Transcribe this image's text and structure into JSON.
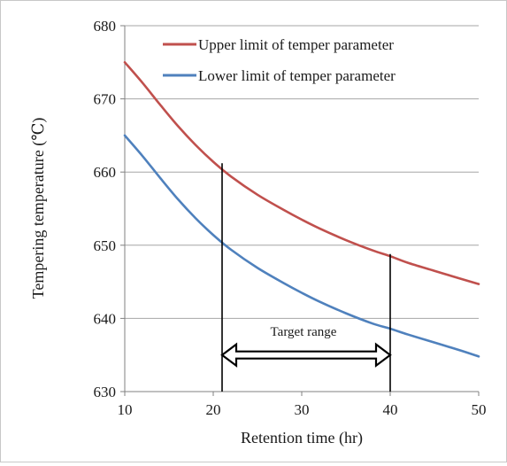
{
  "chart_data": {
    "type": "line",
    "title": "",
    "xlabel": "Retention time (hr)",
    "ylabel": "Tempering temperature (℃)",
    "xlim": [
      10,
      50
    ],
    "ylim": [
      630,
      680
    ],
    "x_ticks": [
      10,
      20,
      30,
      40,
      50
    ],
    "y_ticks": [
      630,
      640,
      650,
      660,
      670,
      680
    ],
    "grid": "horizontal",
    "legend_position": "top-right",
    "series": [
      {
        "name": "Upper limit of temper parameter",
        "color": "#c0504d",
        "x": [
          10,
          12,
          14,
          16,
          18,
          20,
          22,
          25,
          28,
          30,
          32,
          35,
          38,
          40,
          42,
          45,
          48,
          50
        ],
        "y": [
          675,
          672.2,
          669.2,
          666.3,
          663.7,
          661.4,
          659.4,
          656.9,
          654.8,
          653.5,
          652.3,
          650.7,
          649.3,
          648.5,
          647.6,
          646.5,
          645.4,
          644.7
        ]
      },
      {
        "name": "Lower limit of temper parameter",
        "color": "#4f81bd",
        "x": [
          10,
          12,
          14,
          16,
          18,
          20,
          22,
          25,
          28,
          30,
          32,
          35,
          38,
          40,
          42,
          45,
          48,
          50
        ],
        "y": [
          665,
          662.2,
          659.2,
          656.3,
          653.7,
          651.4,
          649.4,
          646.9,
          644.8,
          643.5,
          642.3,
          640.7,
          639.3,
          638.6,
          637.8,
          636.7,
          635.6,
          634.8
        ]
      }
    ],
    "annotations": {
      "target_range": {
        "label": "Target range",
        "x_start": 21,
        "x_end": 40,
        "y_arrow": 635,
        "y_label": 637.6,
        "line_start_top": 661.2,
        "line_end_top": 648.8
      }
    }
  }
}
